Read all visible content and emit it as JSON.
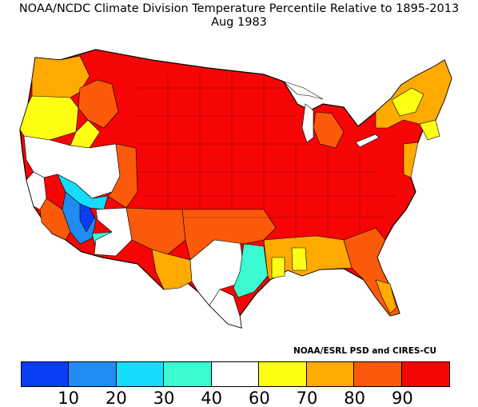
{
  "title": {
    "line1": "NOAA/NCDC Climate Division Temperature Percentile Relative to 1895-2013",
    "line2": "Aug 1983"
  },
  "credit": "NOAA/ESRL PSD and CIRES-CU",
  "legend": {
    "colors": [
      "#0a3cf5",
      "#1e8cf0",
      "#14dcfa",
      "#3cfad2",
      "#ffffff",
      "#ffff14",
      "#ffaa00",
      "#fa5a0a",
      "#f50505"
    ],
    "tick_labels": [
      "10",
      "20",
      "30",
      "40",
      "60",
      "70",
      "80",
      "90"
    ]
  },
  "map": {
    "region": "Contiguous United States climate divisions",
    "dominant_category": "90+ (red) across central and eastern US",
    "border_color": "#000000"
  }
}
